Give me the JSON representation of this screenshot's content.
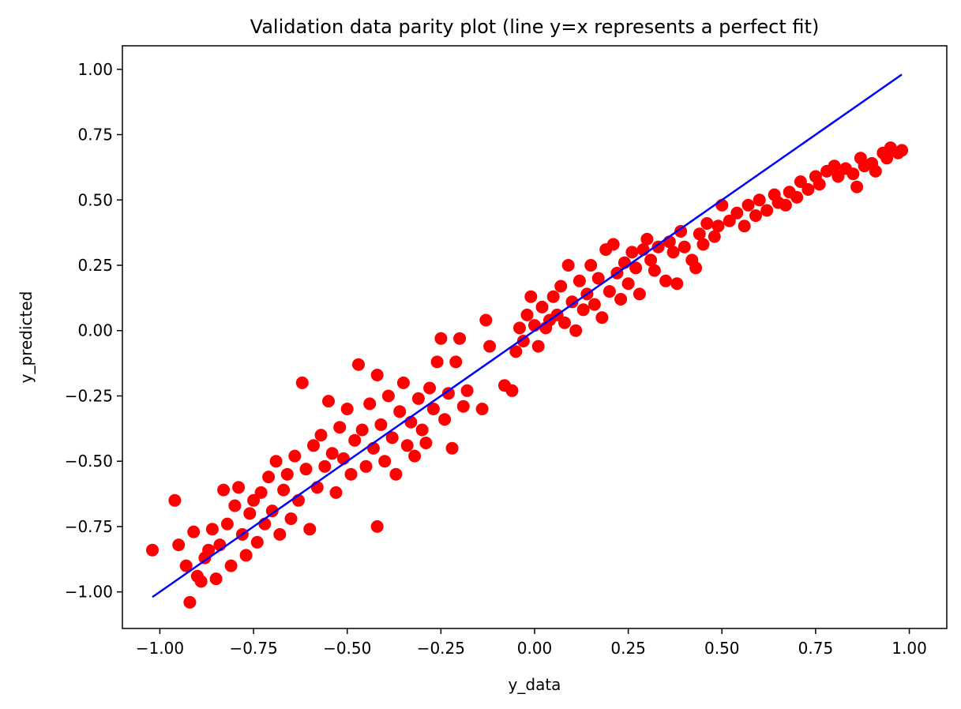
{
  "chart_data": {
    "type": "scatter",
    "title": "Validation data parity plot (line y=x represents a perfect fit)",
    "xlabel": "y_data",
    "ylabel": "y_predicted",
    "xlim": [
      -1.1,
      1.1
    ],
    "ylim": [
      -1.14,
      1.09
    ],
    "xticks": [
      -1.0,
      -0.75,
      -0.5,
      -0.25,
      0.0,
      0.25,
      0.5,
      0.75,
      1.0
    ],
    "yticks": [
      -1.0,
      -0.75,
      -0.5,
      -0.25,
      0.0,
      0.25,
      0.5,
      0.75,
      1.0
    ],
    "xtick_labels": [
      "−1.00",
      "−0.75",
      "−0.50",
      "−0.25",
      "0.00",
      "0.25",
      "0.50",
      "0.75",
      "1.00"
    ],
    "ytick_labels": [
      "−1.00",
      "−0.75",
      "−0.50",
      "−0.25",
      "0.00",
      "0.25",
      "0.50",
      "0.75",
      "1.00"
    ],
    "grid": false,
    "colors": {
      "points": "#ff0000",
      "line": "#0000ff"
    },
    "reference_line": {
      "x": [
        -1.02,
        0.98
      ],
      "y": [
        -1.02,
        0.98
      ]
    },
    "points": [
      [
        -1.02,
        -0.84
      ],
      [
        -0.96,
        -0.65
      ],
      [
        -0.95,
        -0.82
      ],
      [
        -0.93,
        -0.9
      ],
      [
        -0.92,
        -1.04
      ],
      [
        -0.91,
        -0.77
      ],
      [
        -0.9,
        -0.94
      ],
      [
        -0.89,
        -0.96
      ],
      [
        -0.88,
        -0.87
      ],
      [
        -0.87,
        -0.84
      ],
      [
        -0.86,
        -0.76
      ],
      [
        -0.85,
        -0.95
      ],
      [
        -0.84,
        -0.82
      ],
      [
        -0.83,
        -0.61
      ],
      [
        -0.82,
        -0.74
      ],
      [
        -0.81,
        -0.9
      ],
      [
        -0.8,
        -0.67
      ],
      [
        -0.79,
        -0.6
      ],
      [
        -0.78,
        -0.78
      ],
      [
        -0.77,
        -0.86
      ],
      [
        -0.76,
        -0.7
      ],
      [
        -0.75,
        -0.65
      ],
      [
        -0.74,
        -0.81
      ],
      [
        -0.73,
        -0.62
      ],
      [
        -0.72,
        -0.74
      ],
      [
        -0.71,
        -0.56
      ],
      [
        -0.7,
        -0.69
      ],
      [
        -0.69,
        -0.5
      ],
      [
        -0.68,
        -0.78
      ],
      [
        -0.67,
        -0.61
      ],
      [
        -0.66,
        -0.55
      ],
      [
        -0.65,
        -0.72
      ],
      [
        -0.64,
        -0.48
      ],
      [
        -0.63,
        -0.65
      ],
      [
        -0.62,
        -0.2
      ],
      [
        -0.61,
        -0.53
      ],
      [
        -0.6,
        -0.76
      ],
      [
        -0.59,
        -0.44
      ],
      [
        -0.58,
        -0.6
      ],
      [
        -0.57,
        -0.4
      ],
      [
        -0.56,
        -0.52
      ],
      [
        -0.55,
        -0.27
      ],
      [
        -0.54,
        -0.47
      ],
      [
        -0.53,
        -0.62
      ],
      [
        -0.52,
        -0.37
      ],
      [
        -0.51,
        -0.49
      ],
      [
        -0.5,
        -0.3
      ],
      [
        -0.49,
        -0.55
      ],
      [
        -0.48,
        -0.42
      ],
      [
        -0.47,
        -0.13
      ],
      [
        -0.46,
        -0.38
      ],
      [
        -0.45,
        -0.52
      ],
      [
        -0.44,
        -0.28
      ],
      [
        -0.43,
        -0.45
      ],
      [
        -0.42,
        -0.17
      ],
      [
        -0.42,
        -0.75
      ],
      [
        -0.41,
        -0.36
      ],
      [
        -0.4,
        -0.5
      ],
      [
        -0.39,
        -0.25
      ],
      [
        -0.38,
        -0.41
      ],
      [
        -0.37,
        -0.55
      ],
      [
        -0.36,
        -0.31
      ],
      [
        -0.35,
        -0.2
      ],
      [
        -0.34,
        -0.44
      ],
      [
        -0.33,
        -0.35
      ],
      [
        -0.32,
        -0.48
      ],
      [
        -0.31,
        -0.26
      ],
      [
        -0.3,
        -0.38
      ],
      [
        -0.29,
        -0.43
      ],
      [
        -0.28,
        -0.22
      ],
      [
        -0.27,
        -0.3
      ],
      [
        -0.26,
        -0.12
      ],
      [
        -0.25,
        -0.03
      ],
      [
        -0.24,
        -0.34
      ],
      [
        -0.23,
        -0.24
      ],
      [
        -0.22,
        -0.45
      ],
      [
        -0.21,
        -0.12
      ],
      [
        -0.2,
        -0.03
      ],
      [
        -0.19,
        -0.29
      ],
      [
        -0.18,
        -0.23
      ],
      [
        -0.14,
        -0.3
      ],
      [
        -0.13,
        0.04
      ],
      [
        -0.12,
        -0.06
      ],
      [
        -0.08,
        -0.21
      ],
      [
        -0.06,
        -0.23
      ],
      [
        -0.05,
        -0.08
      ],
      [
        -0.04,
        0.01
      ],
      [
        -0.03,
        -0.04
      ],
      [
        -0.02,
        0.06
      ],
      [
        -0.01,
        0.13
      ],
      [
        0.0,
        0.02
      ],
      [
        0.01,
        -0.06
      ],
      [
        0.02,
        0.09
      ],
      [
        0.03,
        0.01
      ],
      [
        0.04,
        0.04
      ],
      [
        0.05,
        0.13
      ],
      [
        0.06,
        0.06
      ],
      [
        0.07,
        0.17
      ],
      [
        0.08,
        0.03
      ],
      [
        0.09,
        0.25
      ],
      [
        0.1,
        0.11
      ],
      [
        0.11,
        0.0
      ],
      [
        0.12,
        0.19
      ],
      [
        0.13,
        0.08
      ],
      [
        0.14,
        0.14
      ],
      [
        0.15,
        0.25
      ],
      [
        0.16,
        0.1
      ],
      [
        0.17,
        0.2
      ],
      [
        0.18,
        0.05
      ],
      [
        0.19,
        0.31
      ],
      [
        0.2,
        0.15
      ],
      [
        0.21,
        0.33
      ],
      [
        0.22,
        0.22
      ],
      [
        0.23,
        0.12
      ],
      [
        0.24,
        0.26
      ],
      [
        0.25,
        0.18
      ],
      [
        0.26,
        0.3
      ],
      [
        0.27,
        0.24
      ],
      [
        0.28,
        0.14
      ],
      [
        0.29,
        0.31
      ],
      [
        0.3,
        0.35
      ],
      [
        0.31,
        0.27
      ],
      [
        0.32,
        0.23
      ],
      [
        0.33,
        0.32
      ],
      [
        0.35,
        0.19
      ],
      [
        0.36,
        0.34
      ],
      [
        0.37,
        0.3
      ],
      [
        0.38,
        0.18
      ],
      [
        0.39,
        0.38
      ],
      [
        0.4,
        0.32
      ],
      [
        0.42,
        0.27
      ],
      [
        0.43,
        0.24
      ],
      [
        0.44,
        0.37
      ],
      [
        0.45,
        0.33
      ],
      [
        0.46,
        0.41
      ],
      [
        0.48,
        0.36
      ],
      [
        0.49,
        0.4
      ],
      [
        0.5,
        0.48
      ],
      [
        0.52,
        0.42
      ],
      [
        0.54,
        0.45
      ],
      [
        0.56,
        0.4
      ],
      [
        0.57,
        0.48
      ],
      [
        0.59,
        0.44
      ],
      [
        0.6,
        0.5
      ],
      [
        0.62,
        0.46
      ],
      [
        0.64,
        0.52
      ],
      [
        0.65,
        0.49
      ],
      [
        0.67,
        0.48
      ],
      [
        0.68,
        0.53
      ],
      [
        0.7,
        0.51
      ],
      [
        0.71,
        0.57
      ],
      [
        0.73,
        0.54
      ],
      [
        0.75,
        0.59
      ],
      [
        0.76,
        0.56
      ],
      [
        0.78,
        0.61
      ],
      [
        0.8,
        0.63
      ],
      [
        0.81,
        0.59
      ],
      [
        0.83,
        0.62
      ],
      [
        0.85,
        0.6
      ],
      [
        0.86,
        0.55
      ],
      [
        0.87,
        0.66
      ],
      [
        0.88,
        0.63
      ],
      [
        0.9,
        0.64
      ],
      [
        0.91,
        0.61
      ],
      [
        0.93,
        0.68
      ],
      [
        0.94,
        0.66
      ],
      [
        0.95,
        0.7
      ],
      [
        0.97,
        0.68
      ],
      [
        0.98,
        0.69
      ]
    ]
  }
}
